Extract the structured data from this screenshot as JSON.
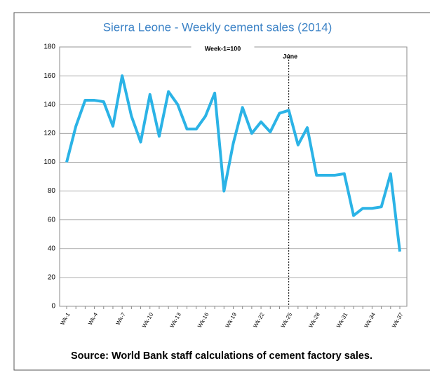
{
  "chart_data": {
    "type": "line",
    "title": "Sierra Leone - Weekly cement sales (2014)",
    "source": "Source: World Bank staff calculations of cement factory sales.",
    "categories": [
      "Wk-1",
      null,
      null,
      "Wk-4",
      null,
      null,
      "Wk-7",
      null,
      null,
      "Wk-10",
      null,
      null,
      "Wk-13",
      null,
      null,
      "Wk-16",
      null,
      null,
      "Wk-19",
      null,
      null,
      "Wk-22",
      null,
      null,
      "Wk-25",
      null,
      null,
      "Wk-28",
      null,
      null,
      "Wk-31",
      null,
      null,
      "Wk-34",
      null,
      null,
      "Wk-37"
    ],
    "series": [
      {
        "name": "Week-1=100",
        "color": "#2bb3e6",
        "values": [
          100,
          125,
          143,
          143,
          142,
          125,
          160,
          132,
          114,
          147,
          118,
          149,
          140,
          123,
          123,
          132,
          148,
          80,
          113,
          138,
          120,
          128,
          121,
          134,
          136,
          112,
          124,
          91,
          91,
          91,
          92,
          63,
          68,
          68,
          69,
          92,
          38
        ]
      }
    ],
    "annotation": {
      "text": "June",
      "at": "Wk-25"
    },
    "ylim": [
      0,
      180
    ],
    "yticks": [
      0,
      20,
      40,
      60,
      80,
      100,
      120,
      140,
      160,
      180
    ],
    "grid": true,
    "legend": "top"
  }
}
